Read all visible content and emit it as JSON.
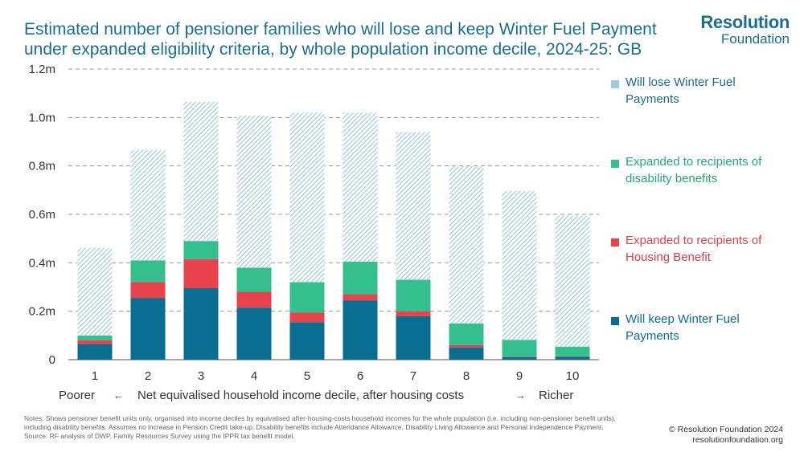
{
  "header": {
    "title": "Estimated number of pensioner families who will lose and keep Winter Fuel Payment under expanded eligibility criteria, by whole population income decile, 2024-25: GB",
    "logo_top": "Resolution",
    "logo_bottom": "Foundation"
  },
  "colors": {
    "lose": "#9ccbe0",
    "disability": "#35bf8e",
    "housing": "#e8434d",
    "keep": "#0a6e92",
    "grid": "#999999",
    "text": "#333333",
    "title": "#1a6e8e"
  },
  "chart_data": {
    "type": "bar",
    "stacked": true,
    "categories": [
      "1",
      "2",
      "3",
      "4",
      "5",
      "6",
      "7",
      "8",
      "9",
      "10"
    ],
    "series": [
      {
        "name": "Will keep Winter Fuel Payments",
        "key": "keep",
        "values": [
          0.065,
          0.255,
          0.295,
          0.215,
          0.155,
          0.245,
          0.18,
          0.05,
          0.01,
          0.012
        ]
      },
      {
        "name": "Expanded to recipients of Housing Benefit",
        "key": "housing",
        "values": [
          0.015,
          0.065,
          0.12,
          0.065,
          0.04,
          0.025,
          0.02,
          0.01,
          0.002,
          0.002
        ]
      },
      {
        "name": "Expanded to recipients of disability benefits",
        "key": "disability",
        "values": [
          0.02,
          0.09,
          0.075,
          0.1,
          0.125,
          0.135,
          0.13,
          0.09,
          0.07,
          0.04
        ]
      },
      {
        "name": "Will lose Winter Fuel Payments",
        "key": "lose",
        "values": [
          0.362,
          0.455,
          0.575,
          0.628,
          0.7,
          0.615,
          0.61,
          0.648,
          0.615,
          0.541
        ]
      }
    ],
    "y_ticks": [
      "0",
      "0.2m",
      "0.4m",
      "0.6m",
      "0.8m",
      "1.0m",
      "1.2m"
    ],
    "ylim": [
      0,
      1.2
    ],
    "xlabel": "Net equivalised household income decile, after housing costs",
    "xlabel_left": "Poorer",
    "xlabel_right": "Richer",
    "arrow_left": "←",
    "arrow_right": "→",
    "grid": true,
    "legend_position": "right",
    "legend": [
      {
        "key": "lose",
        "label": "Will lose Winter Fuel Payments"
      },
      {
        "key": "disability",
        "label": "Expanded to recipients of disability benefits"
      },
      {
        "key": "housing",
        "label": "Expanded to recipients of Housing Benefit"
      },
      {
        "key": "keep",
        "label": "Will keep Winter Fuel Payments"
      }
    ]
  },
  "footer": {
    "notes": "Notes: Shows pensioner benefit units only, organised into income deciles by equivalised after-housing-costs household incomes for the whole population (i.e. including non-pensioner benefit units), including disability benefits. Assumes no increase in Pension Credit take-up. Disability benefits include Attendance Allowance, Disability Living Allowance and Personal Independence Payment.",
    "source": "Source: RF analysis of DWP, Family Resources Survey using the IPPR tax benefit model.",
    "copyright": "© Resolution Foundation 2024",
    "website": "resolutionfoundation.org"
  }
}
